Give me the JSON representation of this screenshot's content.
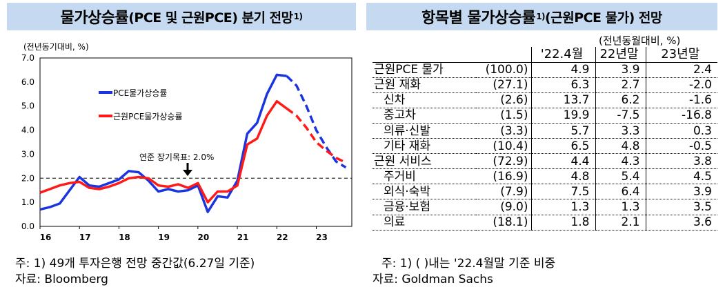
{
  "left_panel": {
    "title": "물가상승률",
    "title_paren": "(PCE 및 근원PCE) 분기 전망",
    "title_sup": "1)",
    "footnote": "주: 1) 49개 투자은행 전망 중간값(6.27일 기준)",
    "source": "자료: Bloomberg"
  },
  "right_panel": {
    "title": "항목별 물가상승률",
    "title_sup": "1)",
    "title_paren": "(근원PCE 물가) 전망",
    "unit": "(전년동월대비, %)",
    "columns": [
      "",
      "",
      "'22.4월",
      "22년말",
      "23년말"
    ],
    "rows": [
      {
        "name": "근원PCE 물가",
        "weight": "(100.0)",
        "v1": "4.9",
        "v2": "3.9",
        "v3": "2.4",
        "level": 0
      },
      {
        "name": "근원 재화",
        "weight": "(27.1)",
        "v1": "6.3",
        "v2": "2.7",
        "v3": "-2.0",
        "level": 0
      },
      {
        "name": "신차",
        "weight": "(2.6)",
        "v1": "13.7",
        "v2": "6.2",
        "v3": "-1.6",
        "level": 1
      },
      {
        "name": "중고차",
        "weight": "(1.5)",
        "v1": "19.9",
        "v2": "-7.5",
        "v3": "-16.8",
        "level": 1
      },
      {
        "name": "의류·신발",
        "weight": "(3.3)",
        "v1": "5.7",
        "v2": "3.3",
        "v3": "0.3",
        "level": 1
      },
      {
        "name": "기타 재화",
        "weight": "(10.4)",
        "v1": "6.5",
        "v2": "4.8",
        "v3": "-0.5",
        "level": 1
      },
      {
        "name": "근원 서비스",
        "weight": "(72.9)",
        "v1": "4.4",
        "v2": "4.3",
        "v3": "3.8",
        "level": 0
      },
      {
        "name": "주거비",
        "weight": "(16.9)",
        "v1": "4.8",
        "v2": "5.4",
        "v3": "4.5",
        "level": 1
      },
      {
        "name": "외식·숙박",
        "weight": "(7.9)",
        "v1": "7.5",
        "v2": "6.4",
        "v3": "3.9",
        "level": 1
      },
      {
        "name": "금융·보험",
        "weight": "(9.0)",
        "v1": "1.3",
        "v2": "1.3",
        "v3": "3.5",
        "level": 1
      },
      {
        "name": "의료",
        "weight": "(18.1)",
        "v1": "1.8",
        "v2": "2.1",
        "v3": "3.6",
        "level": 1
      }
    ],
    "footnote": "주: 1) (    )내는 '22.4월말 기준 비중",
    "source": "자료: Goldman Sachs"
  },
  "chart_data": {
    "type": "line",
    "title": "물가상승률(PCE 및 근원PCE) 분기 전망",
    "ylabel": "(전년동기대비, %)",
    "ylim": [
      0,
      7
    ],
    "yticks": [
      "0.0",
      "1.0",
      "2.0",
      "3.0",
      "4.0",
      "5.0",
      "6.0",
      "7.0"
    ],
    "xlim": [
      2016,
      2023.9
    ],
    "xticks": [
      {
        "label": "16",
        "x": 2016
      },
      {
        "label": "17",
        "x": 2017
      },
      {
        "label": "18",
        "x": 2018
      },
      {
        "label": "19",
        "x": 2019
      },
      {
        "label": "20",
        "x": 2020
      },
      {
        "label": "21",
        "x": 2021
      },
      {
        "label": "22",
        "x": 2022
      },
      {
        "label": "23",
        "x": 2023
      }
    ],
    "reference_line": {
      "value": 2.0,
      "label": "연준 장기목표: 2.0%"
    },
    "legend_position": "upper-left",
    "grid": false,
    "series": [
      {
        "name": "PCE물가상승률",
        "color": "#1a35e0",
        "actual": [
          [
            2016.0,
            0.7
          ],
          [
            2016.25,
            0.8
          ],
          [
            2016.5,
            0.95
          ],
          [
            2016.75,
            1.5
          ],
          [
            2017.0,
            2.05
          ],
          [
            2017.25,
            1.7
          ],
          [
            2017.5,
            1.65
          ],
          [
            2017.75,
            1.8
          ],
          [
            2018.0,
            1.95
          ],
          [
            2018.25,
            2.3
          ],
          [
            2018.5,
            2.25
          ],
          [
            2018.75,
            1.9
          ],
          [
            2019.0,
            1.45
          ],
          [
            2019.25,
            1.55
          ],
          [
            2019.5,
            1.45
          ],
          [
            2019.75,
            1.5
          ],
          [
            2020.0,
            1.7
          ],
          [
            2020.25,
            0.6
          ],
          [
            2020.5,
            1.25
          ],
          [
            2020.75,
            1.2
          ],
          [
            2021.0,
            1.9
          ],
          [
            2021.25,
            3.85
          ],
          [
            2021.5,
            4.3
          ],
          [
            2021.75,
            5.5
          ],
          [
            2022.0,
            6.3
          ],
          [
            2022.25,
            6.25
          ]
        ],
        "forecast": [
          [
            2022.25,
            6.25
          ],
          [
            2022.5,
            5.85
          ],
          [
            2022.75,
            5.0
          ],
          [
            2023.0,
            4.0
          ],
          [
            2023.25,
            3.3
          ],
          [
            2023.5,
            2.7
          ],
          [
            2023.75,
            2.45
          ]
        ]
      },
      {
        "name": "근원PCE물가상승률",
        "color": "#ff1a1a",
        "actual": [
          [
            2016.0,
            1.4
          ],
          [
            2016.25,
            1.55
          ],
          [
            2016.5,
            1.7
          ],
          [
            2016.75,
            1.8
          ],
          [
            2017.0,
            1.85
          ],
          [
            2017.25,
            1.6
          ],
          [
            2017.5,
            1.55
          ],
          [
            2017.75,
            1.65
          ],
          [
            2018.0,
            1.8
          ],
          [
            2018.25,
            2.0
          ],
          [
            2018.5,
            2.05
          ],
          [
            2018.75,
            2.0
          ],
          [
            2019.0,
            1.7
          ],
          [
            2019.25,
            1.65
          ],
          [
            2019.5,
            1.75
          ],
          [
            2019.75,
            1.6
          ],
          [
            2020.0,
            1.8
          ],
          [
            2020.25,
            1.0
          ],
          [
            2020.5,
            1.45
          ],
          [
            2020.75,
            1.45
          ],
          [
            2021.0,
            1.7
          ],
          [
            2021.25,
            3.4
          ],
          [
            2021.5,
            3.65
          ],
          [
            2021.75,
            4.6
          ],
          [
            2022.0,
            5.2
          ],
          [
            2022.25,
            4.9
          ]
        ],
        "forecast": [
          [
            2022.25,
            4.9
          ],
          [
            2022.5,
            4.6
          ],
          [
            2022.75,
            4.1
          ],
          [
            2023.0,
            3.5
          ],
          [
            2023.25,
            3.15
          ],
          [
            2023.5,
            2.85
          ],
          [
            2023.75,
            2.65
          ]
        ]
      }
    ]
  }
}
